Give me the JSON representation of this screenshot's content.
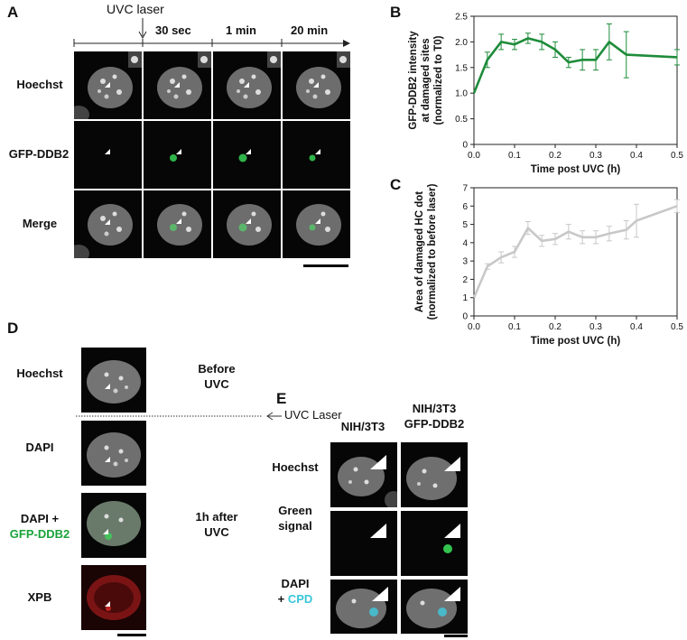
{
  "figure": {
    "panel_a": {
      "letter": "A",
      "laser_label": "UVC laser",
      "time_labels": [
        "30 sec",
        "1 min",
        "20 min"
      ],
      "row_labels": [
        "Hoechst",
        "GFP-DDB2",
        "Merge"
      ]
    },
    "panel_b": {
      "letter": "B"
    },
    "panel_c": {
      "letter": "C"
    },
    "panel_d": {
      "letter": "D",
      "row_labels": [
        "Hoechst",
        "DAPI",
        "DAPI +",
        "GFP-DDB2",
        "XPB"
      ],
      "before_line1": "Before",
      "before_line2": "UVC",
      "laser_label": "UVC Laser",
      "after_line1": "1h after",
      "after_line2": "UVC"
    },
    "panel_e": {
      "letter": "E",
      "col1": "NIH/3T3",
      "col2_line1": "NIH/3T3",
      "col2_line2": "GFP-DDB2",
      "row1": "Hoechst",
      "row2_line1": "Green",
      "row2_line2": "signal",
      "row3_line1": "DAPI",
      "row3_plus": "+ ",
      "row3_cpd": "CPD"
    }
  },
  "colors": {
    "chart_b_line": "#1e8c3a",
    "chart_c_line": "#c8c8c8",
    "green_text": "#1aa33a",
    "cyan_text": "#39c6d8"
  },
  "chart_data": [
    {
      "type": "line",
      "panel": "B",
      "xlabel": "Time post UVC (h)",
      "ylabel_lines": [
        "GFP-DDB2 intensity",
        "at damaged sites",
        "(normalized to T0)"
      ],
      "xlim": [
        0,
        0.5
      ],
      "ylim": [
        0,
        2.5
      ],
      "xticks": [
        "0.0",
        "0.1",
        "0.2",
        "0.3",
        "0.4",
        "0.5"
      ],
      "yticks": [
        "0",
        "0.5",
        "1.0",
        "1.5",
        "2.0",
        "2.5"
      ],
      "x": [
        0,
        0.033,
        0.067,
        0.1,
        0.133,
        0.167,
        0.2,
        0.233,
        0.267,
        0.3,
        0.333,
        0.375,
        0.5
      ],
      "y": [
        1.0,
        1.65,
        2.0,
        1.95,
        2.07,
        2.0,
        1.85,
        1.6,
        1.65,
        1.65,
        2.0,
        1.75,
        1.7
      ],
      "err": [
        0.0,
        0.15,
        0.15,
        0.1,
        0.1,
        0.15,
        0.15,
        0.1,
        0.2,
        0.2,
        0.35,
        0.45,
        0.15
      ]
    },
    {
      "type": "line",
      "panel": "C",
      "xlabel": "Time post UVC (h)",
      "ylabel_lines": [
        "Area of damaged HC dot",
        "(normalized to before laser)"
      ],
      "xlim": [
        0,
        0.5
      ],
      "ylim": [
        0,
        7
      ],
      "xticks": [
        "0.0",
        "0.1",
        "0.2",
        "0.3",
        "0.4",
        "0.5"
      ],
      "yticks": [
        "0",
        "1",
        "2",
        "3",
        "4",
        "5",
        "6",
        "7"
      ],
      "x": [
        0,
        0.033,
        0.067,
        0.1,
        0.133,
        0.167,
        0.2,
        0.233,
        0.267,
        0.3,
        0.333,
        0.375,
        0.4,
        0.5
      ],
      "y": [
        1.0,
        2.7,
        3.2,
        3.5,
        4.8,
        4.1,
        4.2,
        4.6,
        4.3,
        4.3,
        4.5,
        4.7,
        5.2,
        6.0
      ],
      "err": [
        0.0,
        0.15,
        0.3,
        0.3,
        0.35,
        0.3,
        0.3,
        0.4,
        0.35,
        0.35,
        0.4,
        0.5,
        0.9,
        0.35
      ]
    }
  ]
}
